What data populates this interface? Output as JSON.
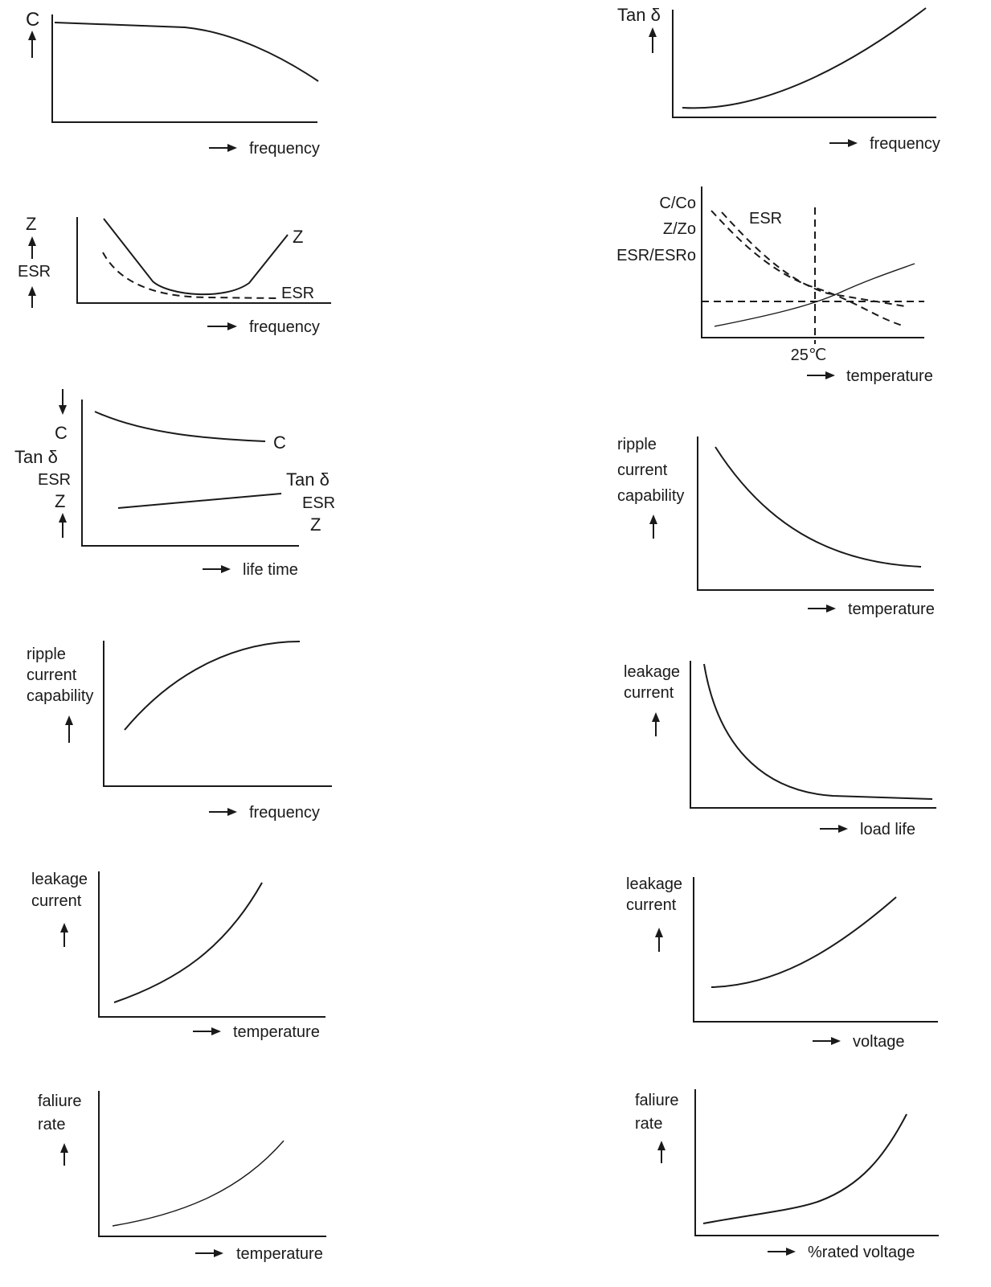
{
  "charts": [
    {
      "type": "line",
      "xlabel": "frequency",
      "y_labels": [
        "C"
      ],
      "series": [
        {
          "name": "",
          "points": [
            [
              0,
              0.9
            ],
            [
              0.5,
              0.88
            ],
            [
              0.7,
              0.7
            ],
            [
              1,
              0.4
            ]
          ]
        }
      ]
    },
    {
      "type": "line",
      "xlabel": "frequency",
      "y_labels": [
        "Tan δ"
      ],
      "series": [
        {
          "name": "",
          "points": [
            [
              0,
              0.12
            ],
            [
              0.3,
              0.2
            ],
            [
              0.6,
              0.5
            ],
            [
              1,
              1.0
            ]
          ]
        }
      ]
    },
    {
      "type": "line",
      "xlabel": "frequency",
      "y_labels": [
        "Z",
        "ESR"
      ],
      "series": [
        {
          "name": "Z",
          "points": [
            [
              0.1,
              1.0
            ],
            [
              0.3,
              0.2
            ],
            [
              0.45,
              0.05
            ],
            [
              0.65,
              0.15
            ],
            [
              0.85,
              0.75
            ]
          ]
        },
        {
          "name": "ESR",
          "points": [
            [
              0.1,
              0.55
            ],
            [
              0.3,
              0.08
            ],
            [
              0.5,
              0.05
            ],
            [
              0.8,
              0.05
            ]
          ],
          "style": "dashed"
        }
      ]
    },
    {
      "type": "line",
      "xlabel": "temperature",
      "x_tick": "25℃",
      "y_labels": [
        "C/Co",
        "Z/Zo",
        "ESR/ESRo"
      ],
      "series": [
        {
          "name": "ESR",
          "points": [
            [
              0.05,
              0.95
            ],
            [
              0.5,
              0.35
            ],
            [
              0.9,
              0.1
            ]
          ],
          "style": "dashed"
        },
        {
          "name": "",
          "points": [
            [
              0.05,
              0.35
            ],
            [
              0.5,
              0.35
            ],
            [
              0.9,
              0.3
            ]
          ],
          "style": "dashed"
        },
        {
          "name": "",
          "points": [
            [
              0.05,
              0.1
            ],
            [
              0.5,
              0.3
            ],
            [
              0.95,
              0.6
            ]
          ]
        },
        {
          "name": "",
          "points": [
            [
              0,
              0.3
            ],
            [
              1,
              0.3
            ]
          ],
          "style": "dashed"
        }
      ]
    },
    {
      "type": "line",
      "xlabel": "life time",
      "y_labels": [
        "C",
        "Tan δ",
        "ESR",
        "Z"
      ],
      "series": [
        {
          "name": "C",
          "points": [
            [
              0.05,
              0.9
            ],
            [
              0.5,
              0.75
            ],
            [
              0.9,
              0.7
            ]
          ]
        },
        {
          "name": "Tan δ",
          "points": [
            [
              0.15,
              0.25
            ],
            [
              0.95,
              0.35
            ]
          ],
          "extra_labels": [
            "ESR",
            "Z"
          ]
        }
      ]
    },
    {
      "type": "line",
      "xlabel": "temperature",
      "y_labels": [
        "ripple",
        "current",
        "capability"
      ],
      "series": [
        {
          "name": "",
          "points": [
            [
              0.05,
              1.0
            ],
            [
              0.4,
              0.5
            ],
            [
              1,
              0.15
            ]
          ]
        }
      ]
    },
    {
      "type": "line",
      "xlabel": "frequency",
      "y_labels": [
        "ripple",
        "current",
        "capability"
      ],
      "series": [
        {
          "name": "",
          "points": [
            [
              0.1,
              0.4
            ],
            [
              0.5,
              0.9
            ],
            [
              0.85,
              1.0
            ]
          ]
        }
      ]
    },
    {
      "type": "line",
      "xlabel": "load life",
      "y_labels": [
        "leakage",
        "current"
      ],
      "series": [
        {
          "name": "",
          "points": [
            [
              0.05,
              1.0
            ],
            [
              0.3,
              0.3
            ],
            [
              0.6,
              0.1
            ],
            [
              1,
              0.08
            ]
          ]
        }
      ]
    },
    {
      "type": "line",
      "xlabel": "temperature",
      "y_labels": [
        "leakage",
        "current"
      ],
      "series": [
        {
          "name": "",
          "points": [
            [
              0.1,
              0.1
            ],
            [
              0.5,
              0.4
            ],
            [
              0.8,
              1.0
            ]
          ]
        }
      ]
    },
    {
      "type": "line",
      "xlabel": "voltage",
      "y_labels": [
        "leakage",
        "current"
      ],
      "series": [
        {
          "name": "",
          "points": [
            [
              0.1,
              0.3
            ],
            [
              0.5,
              0.6
            ],
            [
              0.9,
              1.0
            ]
          ]
        }
      ]
    },
    {
      "type": "line",
      "xlabel": "temperature",
      "y_labels": [
        "faliure",
        "rate"
      ],
      "series": [
        {
          "name": "",
          "points": [
            [
              0.1,
              0.1
            ],
            [
              0.5,
              0.4
            ],
            [
              0.9,
              1.0
            ]
          ]
        }
      ]
    },
    {
      "type": "line",
      "xlabel": "%rated voltage",
      "y_labels": [
        "faliure",
        "rate"
      ],
      "series": [
        {
          "name": "",
          "points": [
            [
              0.05,
              0.1
            ],
            [
              0.5,
              0.3
            ],
            [
              0.9,
              1.0
            ]
          ]
        }
      ]
    }
  ],
  "chart_data": [
    {
      "type": "line",
      "xlabel": "frequency",
      "ylabel": "C"
    },
    {
      "type": "line",
      "xlabel": "frequency",
      "ylabel": "Tan δ"
    },
    {
      "type": "line",
      "xlabel": "frequency",
      "ylabel": "Z / ESR"
    },
    {
      "type": "line",
      "xlabel": "temperature",
      "ylabel": "C/Co, Z/Zo, ESR/ESRo"
    },
    {
      "type": "line",
      "xlabel": "life time",
      "ylabel": "C, Tan δ, ESR, Z"
    },
    {
      "type": "line",
      "xlabel": "temperature",
      "ylabel": "ripple current capability"
    },
    {
      "type": "line",
      "xlabel": "frequency",
      "ylabel": "ripple current capability"
    },
    {
      "type": "line",
      "xlabel": "load life",
      "ylabel": "leakage current"
    },
    {
      "type": "line",
      "xlabel": "temperature",
      "ylabel": "leakage current"
    },
    {
      "type": "line",
      "xlabel": "voltage",
      "ylabel": "leakage current"
    },
    {
      "type": "line",
      "xlabel": "temperature",
      "ylabel": "faliure rate"
    },
    {
      "type": "line",
      "xlabel": "%rated voltage",
      "ylabel": "faliure rate"
    }
  ]
}
